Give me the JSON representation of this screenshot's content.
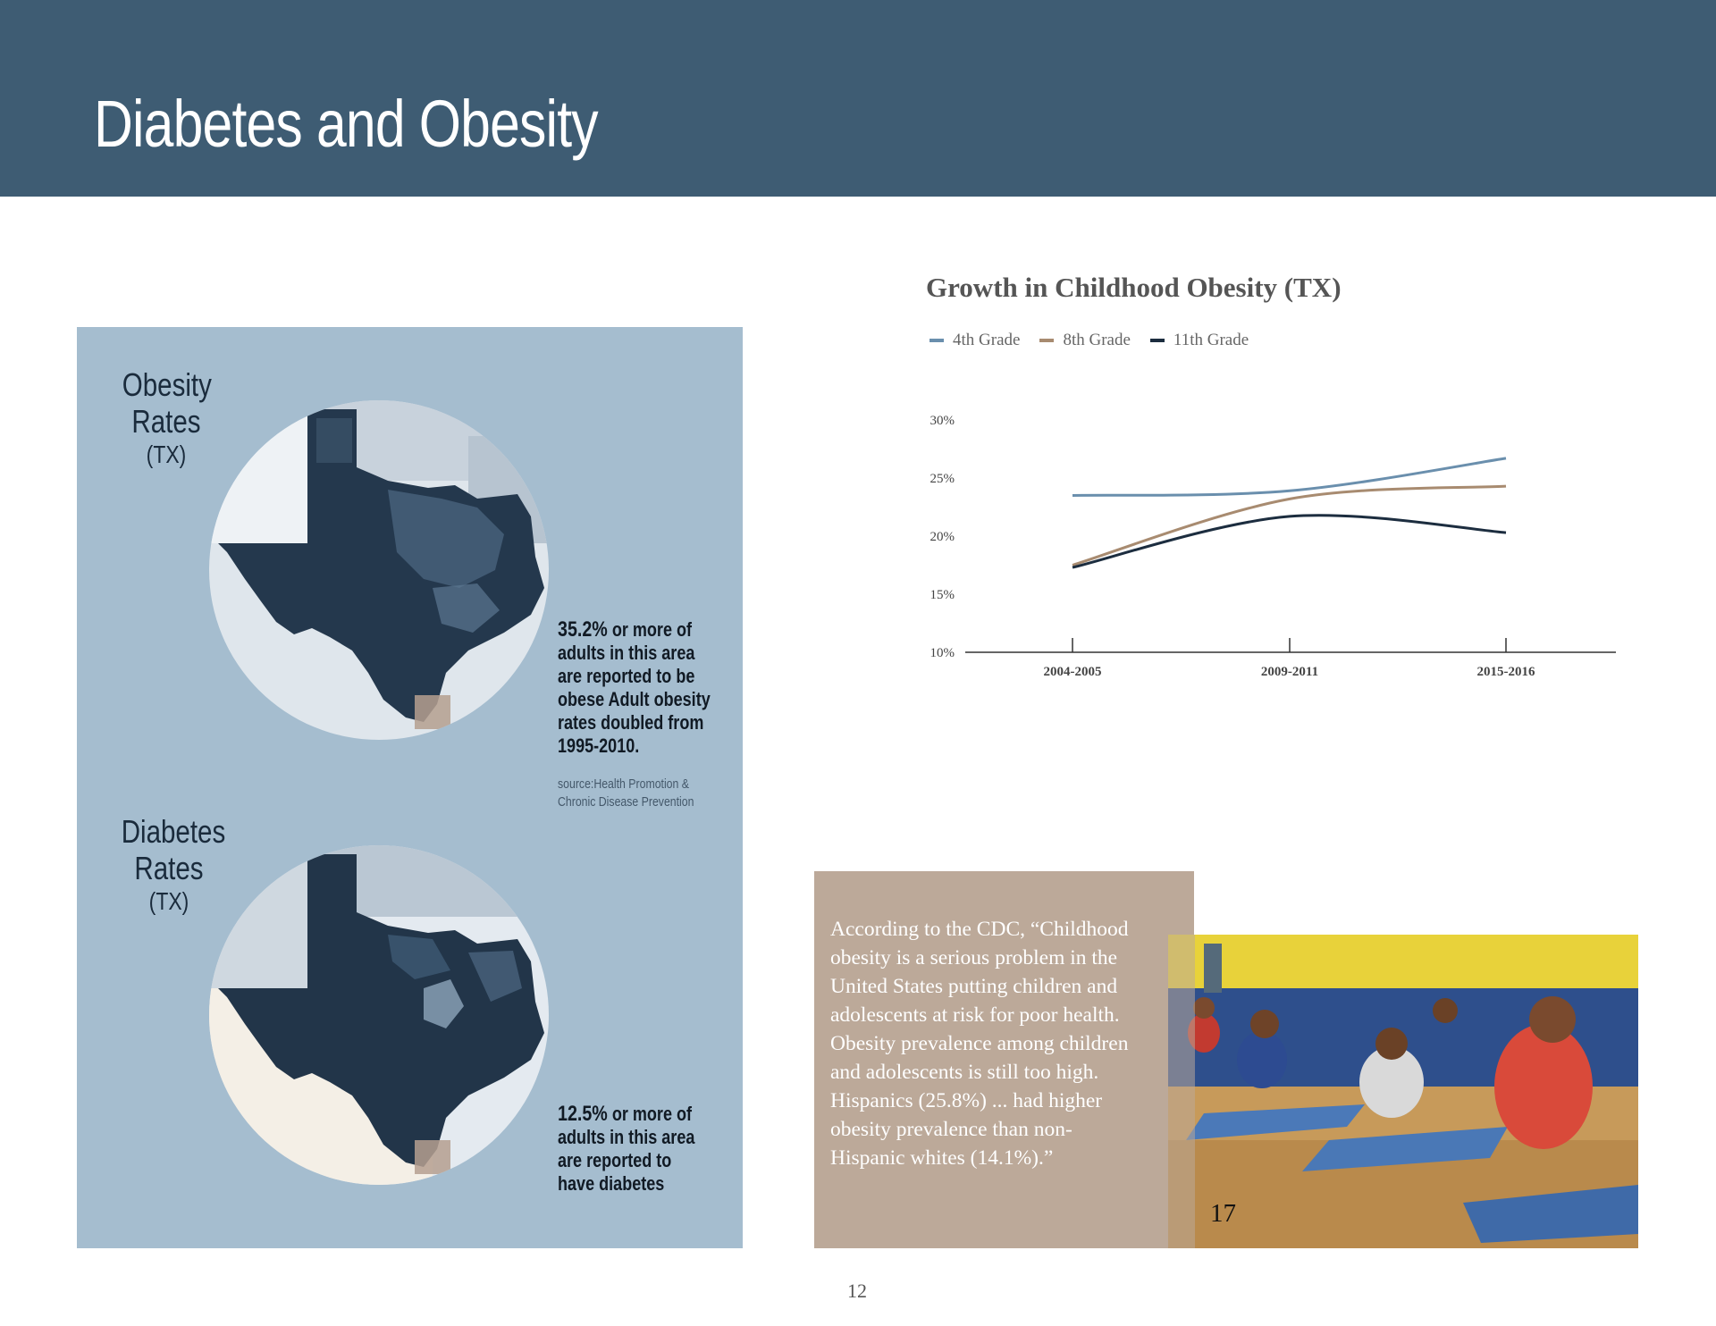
{
  "header": {
    "title": "Diabetes and Obesity"
  },
  "obesity": {
    "title_line1": "Obesity",
    "title_line2": "Rates",
    "title_line3": "(TX)",
    "stat_number": "35.2%",
    "stat_text": " or more of adults in this area are reported to be obese Adult obesity rates doubled from 1995-2010.",
    "source": "source:Health Promotion & Chronic Disease Prevention"
  },
  "diabetes": {
    "title_line1": "Diabetes",
    "title_line2": "Rates",
    "title_line3": "(TX)",
    "stat_number": "12.5%",
    "stat_text": " or more of adults in this area are reported to have diabetes"
  },
  "chart_data": {
    "type": "line",
    "title": "Growth in Childhood Obesity (TX)",
    "categories": [
      "2004-2005",
      "2009-2011",
      "2015-2016"
    ],
    "series": [
      {
        "name": "4th Grade",
        "values": [
          23.5,
          23.9,
          26.7
        ],
        "color": "#6a8fad"
      },
      {
        "name": "8th Grade",
        "values": [
          17.5,
          23.2,
          24.3
        ],
        "color": "#a88b70"
      },
      {
        "name": "11th Grade",
        "values": [
          17.3,
          21.7,
          20.3
        ],
        "color": "#1c2d3f"
      }
    ],
    "yticks": [
      "10%",
      "15%",
      "20%",
      "25%",
      "30%"
    ],
    "ylim": [
      10,
      30
    ],
    "grid": false,
    "legend": "top-left"
  },
  "quote": {
    "text": "According to the CDC, “Childhood obesity is a serious problem in the United States putting children and adolescents at risk for poor health. Obesity prevalence among children and adolescents is still too high. Hispanics (25.8%) ... had higher obesity prevalence than non-Hispanic whites (14.1%).”"
  },
  "photo": {
    "number": "17"
  },
  "page": {
    "number": "12"
  }
}
